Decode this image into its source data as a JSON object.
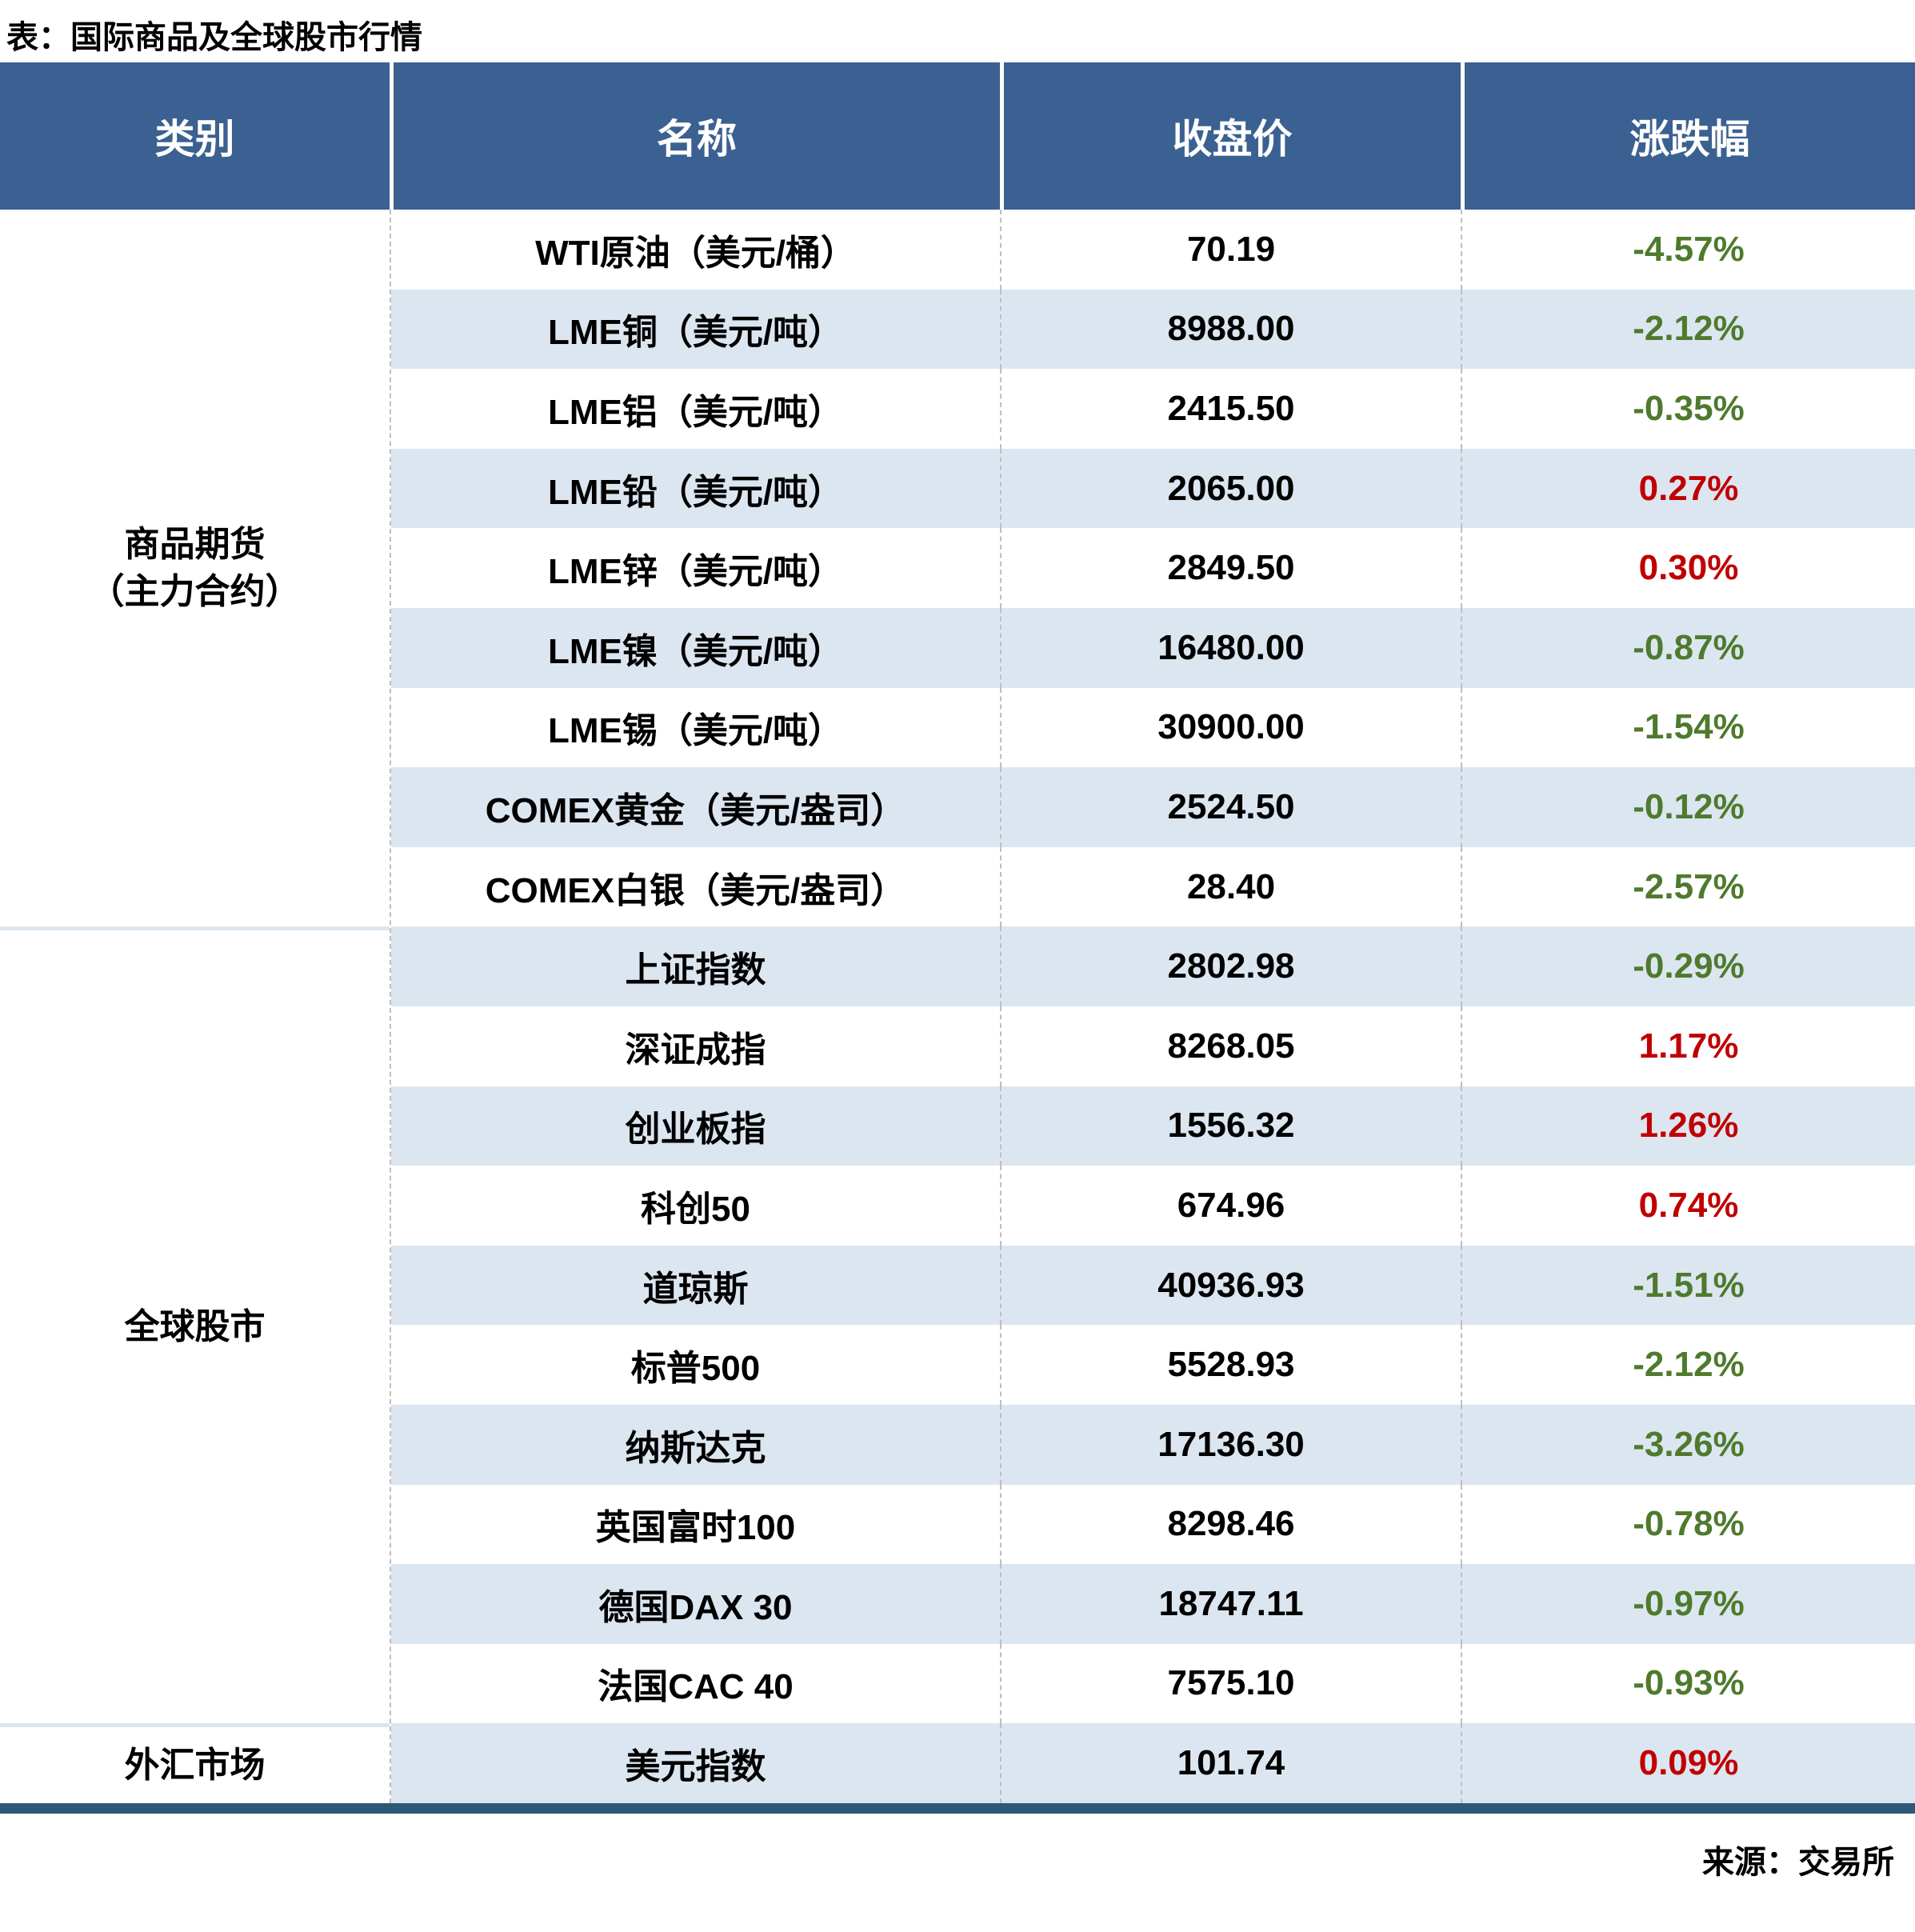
{
  "title": "表：国际商品及全球股市行情",
  "source_note": "来源：交易所",
  "colors": {
    "header_bg": "#3A6191",
    "stripe_bg": "#DCE6F1",
    "positive_red": "#C00000",
    "negative_green": "#4E7A2D",
    "bottom_bar": "#2E5878",
    "dashed_divider": "#BFBFBF"
  },
  "table": {
    "columns": [
      "类别",
      "名称",
      "收盘价",
      "涨跌幅"
    ],
    "sections": [
      {
        "category_lines": [
          "商品期货",
          "（主力合约）"
        ],
        "rows": [
          {
            "name": "WTI原油（美元/桶）",
            "close": "70.19",
            "change": "-4.57%"
          },
          {
            "name": "LME铜（美元/吨）",
            "close": "8988.00",
            "change": "-2.12%"
          },
          {
            "name": "LME铝（美元/吨）",
            "close": "2415.50",
            "change": "-0.35%"
          },
          {
            "name": "LME铅（美元/吨）",
            "close": "2065.00",
            "change": "0.27%"
          },
          {
            "name": "LME锌（美元/吨）",
            "close": "2849.50",
            "change": "0.30%"
          },
          {
            "name": "LME镍（美元/吨）",
            "close": "16480.00",
            "change": "-0.87%"
          },
          {
            "name": "LME锡（美元/吨）",
            "close": "30900.00",
            "change": "-1.54%"
          },
          {
            "name": "COMEX黄金（美元/盎司）",
            "close": "2524.50",
            "change": "-0.12%"
          },
          {
            "name": "COMEX白银（美元/盎司）",
            "close": "28.40",
            "change": "-2.57%"
          }
        ]
      },
      {
        "category_lines": [
          "全球股市"
        ],
        "rows": [
          {
            "name": "上证指数",
            "close": "2802.98",
            "change": "-0.29%"
          },
          {
            "name": "深证成指",
            "close": "8268.05",
            "change": "1.17%"
          },
          {
            "name": "创业板指",
            "close": "1556.32",
            "change": "1.26%"
          },
          {
            "name": "科创50",
            "close": "674.96",
            "change": "0.74%"
          },
          {
            "name": "道琼斯",
            "close": "40936.93",
            "change": "-1.51%"
          },
          {
            "name": "标普500",
            "close": "5528.93",
            "change": "-2.12%"
          },
          {
            "name": "纳斯达克",
            "close": "17136.30",
            "change": "-3.26%"
          },
          {
            "name": "英国富时100",
            "close": "8298.46",
            "change": "-0.78%"
          },
          {
            "name": "德国DAX 30",
            "close": "18747.11",
            "change": "-0.97%"
          },
          {
            "name": "法国CAC 40",
            "close": "7575.10",
            "change": "-0.93%"
          }
        ]
      },
      {
        "category_lines": [
          "外汇市场"
        ],
        "rows": [
          {
            "name": "美元指数",
            "close": "101.74",
            "change": "0.09%"
          }
        ]
      }
    ]
  },
  "chart_data": {
    "type": "table",
    "title": "表：国际商品及全球股市行情",
    "columns": [
      "类别",
      "名称",
      "收盘价",
      "涨跌幅"
    ],
    "rows": [
      [
        "商品期货（主力合约）",
        "WTI原油（美元/桶）",
        70.19,
        "-4.57%"
      ],
      [
        "商品期货（主力合约）",
        "LME铜（美元/吨）",
        8988.0,
        "-2.12%"
      ],
      [
        "商品期货（主力合约）",
        "LME铝（美元/吨）",
        2415.5,
        "-0.35%"
      ],
      [
        "商品期货（主力合约）",
        "LME铅（美元/吨）",
        2065.0,
        "0.27%"
      ],
      [
        "商品期货（主力合约）",
        "LME锌（美元/吨）",
        2849.5,
        "0.30%"
      ],
      [
        "商品期货（主力合约）",
        "LME镍（美元/吨）",
        16480.0,
        "-0.87%"
      ],
      [
        "商品期货（主力合约）",
        "LME锡（美元/吨）",
        30900.0,
        "-1.54%"
      ],
      [
        "商品期货（主力合约）",
        "COMEX黄金（美元/盎司）",
        2524.5,
        "-0.12%"
      ],
      [
        "商品期货（主力合约）",
        "COMEX白银（美元/盎司）",
        28.4,
        "-2.57%"
      ],
      [
        "全球股市",
        "上证指数",
        2802.98,
        "-0.29%"
      ],
      [
        "全球股市",
        "深证成指",
        8268.05,
        "1.17%"
      ],
      [
        "全球股市",
        "创业板指",
        1556.32,
        "1.26%"
      ],
      [
        "全球股市",
        "科创50",
        674.96,
        "0.74%"
      ],
      [
        "全球股市",
        "道琼斯",
        40936.93,
        "-1.51%"
      ],
      [
        "全球股市",
        "标普500",
        5528.93,
        "-2.12%"
      ],
      [
        "全球股市",
        "纳斯达克",
        17136.3,
        "-3.26%"
      ],
      [
        "全球股市",
        "英国富时100",
        8298.46,
        "-0.78%"
      ],
      [
        "全球股市",
        "德国DAX 30",
        18747.11,
        "-0.97%"
      ],
      [
        "全球股市",
        "法国CAC 40",
        7575.1,
        "-0.93%"
      ],
      [
        "外汇市场",
        "美元指数",
        101.74,
        "0.09%"
      ]
    ],
    "legend_note": "负值为绿色，正值为红色"
  }
}
